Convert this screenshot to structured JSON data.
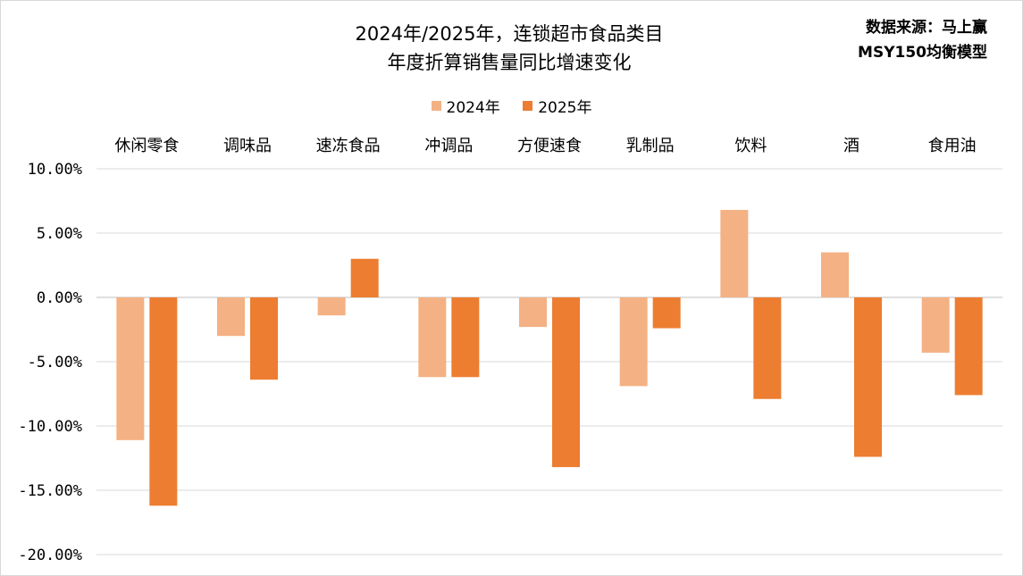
{
  "header": {
    "title_line1": "2024年/2025年，连锁超市食品类目",
    "title_line2": "年度折算销售量同比增速变化",
    "source_line1": "数据来源：马上赢",
    "source_line2": "MSY150均衡模型"
  },
  "colors": {
    "series_2024": "#f4b183",
    "series_2025": "#ed7d31",
    "grid": "#d9d9d9",
    "axis": "#bfbfbf"
  },
  "chart_data": {
    "type": "bar",
    "categories": [
      "休闲零食",
      "调味品",
      "速冻食品",
      "冲调品",
      "方便速食",
      "乳制品",
      "饮料",
      "酒",
      "食用油"
    ],
    "series": [
      {
        "name": "2024年",
        "values": [
          -11.1,
          -3.0,
          -1.4,
          -6.2,
          -2.3,
          -6.9,
          6.8,
          3.5,
          -4.3
        ]
      },
      {
        "name": "2025年",
        "values": [
          -16.2,
          -6.4,
          3.0,
          -6.2,
          -13.2,
          -2.4,
          -7.9,
          -12.4,
          -7.6
        ]
      }
    ],
    "ylim": [
      -20,
      10
    ],
    "yticks": [
      "10.00%",
      "5.00%",
      "0.00%",
      "-5.00%",
      "-10.00%",
      "-15.00%",
      "-20.00%"
    ],
    "ytick_values": [
      10,
      5,
      0,
      -5,
      -10,
      -15,
      -20
    ],
    "category_axis_position": "top",
    "legend_position": "top",
    "grid": true
  }
}
